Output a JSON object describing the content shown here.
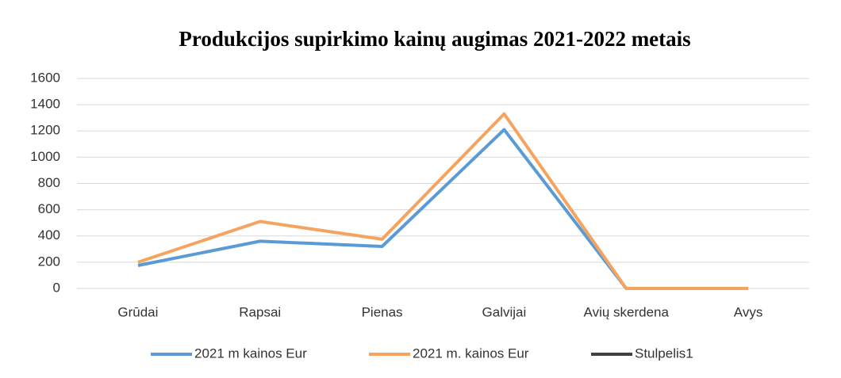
{
  "chart_data": {
    "type": "line",
    "title": "Produkcijos supirkimo kainų augimas 2021-2022 metais",
    "categories": [
      "Grūdai",
      "Rapsai",
      "Pienas",
      "Galvijai",
      "Avių skerdena",
      "Avys"
    ],
    "series": [
      {
        "name": "2021 m kainos Eur",
        "color": "#5b9bd5",
        "values": [
          175,
          360,
          320,
          1210,
          0,
          0
        ]
      },
      {
        "name": "2021 m. kainos Eur",
        "color": "#f4a460",
        "values": [
          200,
          510,
          375,
          1330,
          0,
          0
        ]
      },
      {
        "name": "Stulpelis1",
        "color": "#404040",
        "values": [
          null,
          null,
          null,
          null,
          null,
          null
        ]
      }
    ],
    "ylim": [
      0,
      1600
    ],
    "yticks": [
      0,
      200,
      400,
      600,
      800,
      1000,
      1200,
      1400,
      1600
    ],
    "grid": true,
    "legend": "bottom"
  }
}
